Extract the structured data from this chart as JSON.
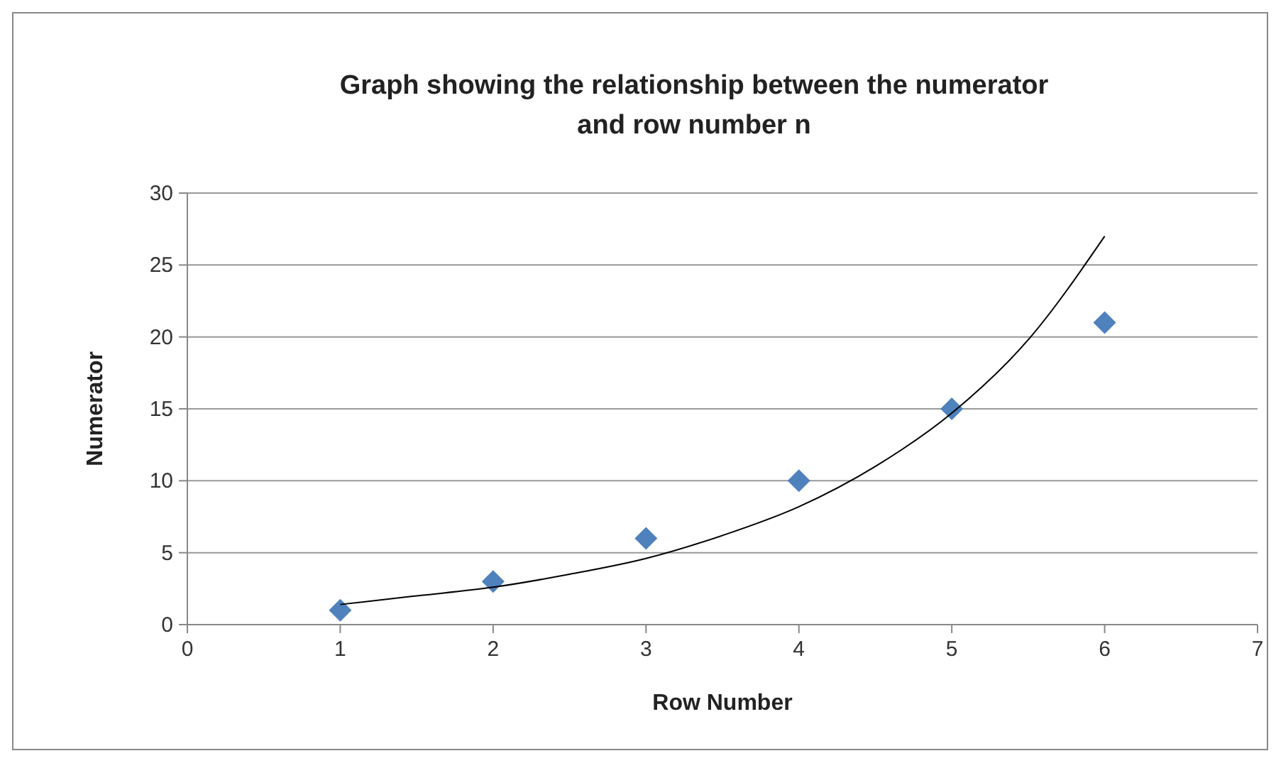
{
  "chart_data": {
    "type": "scatter",
    "title": "Graph showing the relationship between the numerator and row number n",
    "xlabel": "Row Number",
    "ylabel": "Numerator",
    "series": [
      {
        "color": "#4f81bd",
        "marker": "diamond",
        "x": [
          1,
          2,
          3,
          4,
          5,
          6
        ],
        "values": [
          1,
          3,
          6,
          10,
          15,
          21
        ]
      },
      {
        "type": "line",
        "color": "#000000",
        "marker": "none",
        "x": [
          1,
          1.5,
          2,
          2.5,
          3,
          3.5,
          4,
          4.5,
          5,
          5.5,
          6
        ],
        "values": [
          1.4,
          2,
          2.6,
          3.5,
          4.6,
          6.2,
          8.2,
          11,
          14.7,
          19.8,
          27
        ]
      }
    ],
    "xlim": [
      0,
      7
    ],
    "xticks": [
      0,
      1,
      2,
      3,
      4,
      5,
      6,
      7
    ],
    "ylim": [
      0,
      30
    ],
    "yticks": [
      0,
      5,
      10,
      15,
      20,
      25,
      30
    ],
    "grid": "y"
  }
}
